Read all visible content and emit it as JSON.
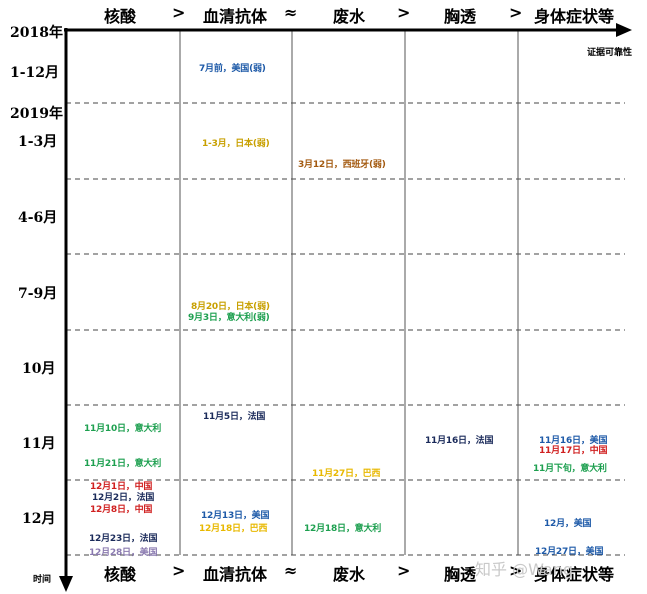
{
  "columns": [
    "核酸",
    "血清抗体",
    "废水",
    "胸透",
    "身体症状等"
  ],
  "separators": [
    ">",
    "≈",
    ">",
    ">"
  ],
  "axis": {
    "x_note": "证据可靠性",
    "y_note": "时间"
  },
  "time_labels": [
    "2018年",
    "1-12月",
    "2019年",
    "1-3月",
    "4-6月",
    "7-9月",
    "10月",
    "11月",
    "12月"
  ],
  "events": [
    {
      "text": "7月前，美国(弱)",
      "color": "#1e5aa8"
    },
    {
      "text": "1-3月，日本(弱)",
      "color": "#c8a000"
    },
    {
      "text": "3月12日，西班牙(弱)",
      "color": "#a35a10"
    },
    {
      "text": "8月20日，日本(弱)",
      "color": "#c8a000"
    },
    {
      "text": "9月3日，意大利(弱)",
      "color": "#1ea050"
    },
    {
      "text": "11月5日，法国",
      "color": "#1a2a5a"
    },
    {
      "text": "11月10日，意大利",
      "color": "#1ea050"
    },
    {
      "text": "11月16日，法国",
      "color": "#1a2a5a"
    },
    {
      "text": "11月16日，美国",
      "color": "#1e5aa8"
    },
    {
      "text": "11月17日，中国",
      "color": "#d02020"
    },
    {
      "text": "11月21日，意大利",
      "color": "#1ea050"
    },
    {
      "text": "11月下旬，意大利",
      "color": "#1ea050"
    },
    {
      "text": "11月27日，巴西",
      "color": "#e8b800"
    },
    {
      "text": "12月1日，中国",
      "color": "#d02020"
    },
    {
      "text": "12月2日，法国",
      "color": "#1a2a5a"
    },
    {
      "text": "12月8日，中国",
      "color": "#d02020"
    },
    {
      "text": "12月13日，美国",
      "color": "#1e5aa8"
    },
    {
      "text": "12月18日，巴西",
      "color": "#e8b800"
    },
    {
      "text": "12月18日，意大利",
      "color": "#1ea050"
    },
    {
      "text": "12月，美国",
      "color": "#1e5aa8"
    },
    {
      "text": "12月23日，法国",
      "color": "#1a2a5a"
    },
    {
      "text": "12月28日，美国",
      "color": "#8a7ab0"
    },
    {
      "text": "12月27日，美国",
      "color": "#1e5aa8"
    }
  ],
  "watermark": "知乎 @Wang"
}
